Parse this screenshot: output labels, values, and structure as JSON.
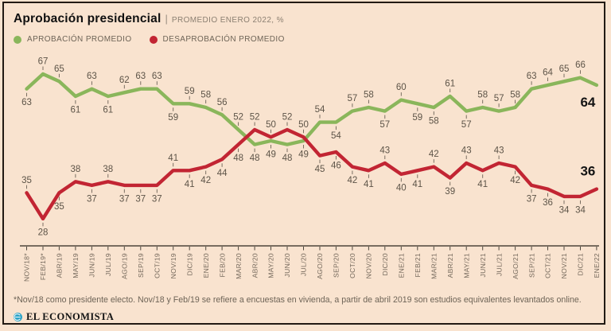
{
  "header": {
    "title": "Aprobación presidencial",
    "separator": "|",
    "subtitle": "PROMEDIO ENERO 2022, %"
  },
  "legend": [
    {
      "label": "APROBACIÓN PROMEDIO",
      "color": "#8ab65b"
    },
    {
      "label": "DESAPROBACIÓN PROMEDIO",
      "color": "#c22533"
    }
  ],
  "chart_data": {
    "type": "line",
    "title": "Aprobación presidencial",
    "subtitle": "PROMEDIO ENERO 2022, %",
    "ylim": [
      25,
      70
    ],
    "grid": false,
    "legend_position": "top-left",
    "axis_color": "#4d463c",
    "categories": [
      "NOV/18*",
      "FEB/19*",
      "ABR/19",
      "MAY/19",
      "JUN/19",
      "JUL/19",
      "AGO/19",
      "SEP/19",
      "OCT/19",
      "NOV/19",
      "DIC/19",
      "ENE/20",
      "FEB/20",
      "MAR/20",
      "ABR/20",
      "MAY/20",
      "JUN/20",
      "JUL/20",
      "AGO/20",
      "SEP/20",
      "OCT/20",
      "NOV/20",
      "DIC/20",
      "ENE/21",
      "FEB/21",
      "MAR/21",
      "ABR/21",
      "MAY/21",
      "JUN/21",
      "JUL/21",
      "AGO/21",
      "SEP/21",
      "OCT/21",
      "NOV/21",
      "DIC/21",
      "ENE/22"
    ],
    "series": [
      {
        "name": "APROBACIÓN PROMEDIO",
        "color": "#8ab65b",
        "values": [
          63,
          67,
          65,
          61,
          63,
          61,
          62,
          63,
          63,
          59,
          59,
          58,
          56,
          52,
          48,
          49,
          48,
          49,
          54,
          54,
          57,
          58,
          57,
          60,
          59,
          58,
          61,
          57,
          58,
          57,
          58,
          63,
          64,
          65,
          66,
          64
        ],
        "label_side": [
          "below",
          "above",
          "above",
          "below",
          "above",
          "below",
          "above",
          "above",
          "above",
          "below",
          "above",
          "above",
          "above",
          "above",
          "below",
          "below",
          "below",
          "below",
          "above",
          "below",
          "above",
          "above",
          "below",
          "above",
          "below",
          "below",
          "above",
          "below",
          "above",
          "above",
          "above",
          "above",
          "above",
          "above",
          "above",
          "end"
        ],
        "end_label": "64",
        "end_label_side": "below"
      },
      {
        "name": "DESAPROBACIÓN PROMEDIO",
        "color": "#c22533",
        "values": [
          35,
          28,
          35,
          38,
          37,
          38,
          37,
          37,
          37,
          41,
          41,
          42,
          44,
          48,
          52,
          50,
          52,
          50,
          45,
          46,
          42,
          41,
          43,
          40,
          41,
          42,
          39,
          43,
          41,
          43,
          42,
          37,
          36,
          34,
          34,
          36
        ],
        "label_side": [
          "above",
          "below",
          "below",
          "above",
          "below",
          "above",
          "below",
          "below",
          "below",
          "above",
          "below",
          "below",
          "below",
          "below",
          "above",
          "above",
          "above",
          "above",
          "below",
          "below",
          "below",
          "below",
          "above",
          "below",
          "below",
          "above",
          "below",
          "above",
          "below",
          "above",
          "below",
          "below",
          "below",
          "below",
          "below",
          "end"
        ],
        "end_label": "36",
        "end_label_side": "above"
      }
    ]
  },
  "footnote": "*Nov/18 como presidente electo. Nov/18 y Feb/19 se refiere a encuestas en vivienda, a partir de abril 2019 son estudios equivalentes levantados online.",
  "logo": {
    "text": "EL ECONOMISTA",
    "icon": "el-economista-globe-icon",
    "icon_color": "#2ea4c7"
  }
}
